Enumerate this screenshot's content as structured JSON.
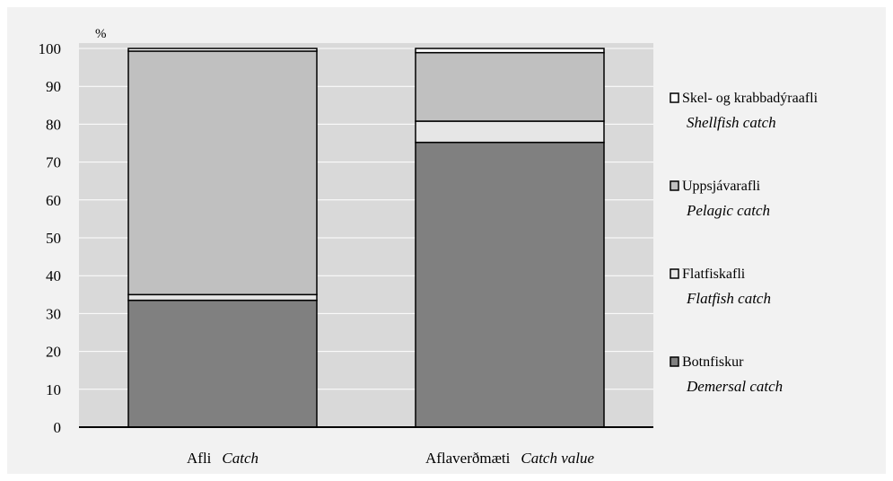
{
  "chart_data": {
    "type": "bar",
    "stacked": true,
    "ylabel": "%",
    "ylim": [
      0,
      100
    ],
    "yticks": [
      0,
      10,
      20,
      30,
      40,
      50,
      60,
      70,
      80,
      90,
      100
    ],
    "grid": true,
    "legend_position": "right",
    "categories": [
      {
        "label": "Afli",
        "label_en": "Catch"
      },
      {
        "label": "Aflaverðmæti",
        "label_en": "Catch value"
      }
    ],
    "series": [
      {
        "name": "Botnfiskur",
        "name_en": "Demersal catch",
        "color": "#808080",
        "values": [
          33.5,
          75.2
        ]
      },
      {
        "name": "Flatfiskafli",
        "name_en": "Flatfish catch",
        "color": "#e6e6e6",
        "values": [
          1.5,
          5.6
        ]
      },
      {
        "name": "Uppsjávarafli",
        "name_en": "Pelagic catch",
        "color": "#c0c0c0",
        "values": [
          64.3,
          18.1
        ]
      },
      {
        "name": "Skel- og krabbadýraafli",
        "name_en": "Shellfish catch",
        "color": "#ffffff",
        "values": [
          0.7,
          1.1
        ]
      }
    ]
  }
}
